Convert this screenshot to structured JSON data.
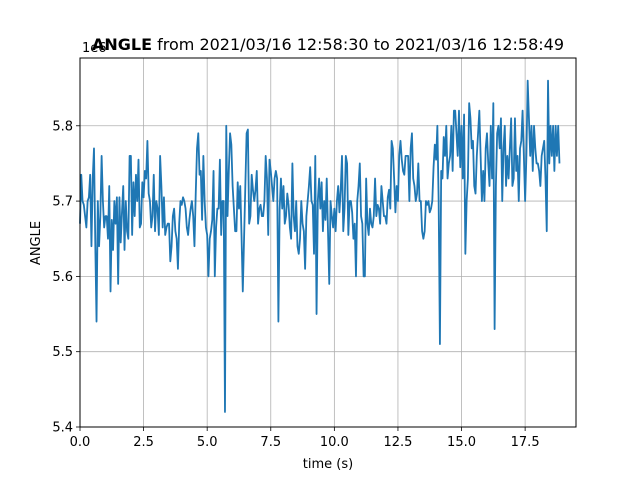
{
  "chart_data": {
    "type": "line",
    "title_bold": "ANGLE",
    "title_rest": " from 2021/03/16 12:58:30 to 2021/03/16 12:58:49",
    "xlabel": "time (s)",
    "ylabel": "ANGLE",
    "y_offset_label": "1e6",
    "xlim": [
      0,
      19.5
    ],
    "ylim": [
      5.4,
      5.89
    ],
    "xticks": [
      0.0,
      2.5,
      5.0,
      7.5,
      10.0,
      12.5,
      15.0,
      17.5
    ],
    "xtick_labels": [
      "0.0",
      "2.5",
      "5.0",
      "7.5",
      "10.0",
      "12.5",
      "15.0",
      "17.5"
    ],
    "yticks": [
      5.4,
      5.5,
      5.6,
      5.7,
      5.8
    ],
    "ytick_labels": [
      "5.4",
      "5.5",
      "5.6",
      "5.7",
      "5.8"
    ],
    "grid": true,
    "line_color": "#1f77b4",
    "x_start": 0.0,
    "x_step": 0.05,
    "series": [
      {
        "values": [
          5.67,
          5.735,
          5.7,
          5.695,
          5.68,
          5.665,
          5.7,
          5.705,
          5.735,
          5.64,
          5.73,
          5.77,
          5.645,
          5.54,
          5.7,
          5.64,
          5.68,
          5.76,
          5.7,
          5.665,
          5.68,
          5.68,
          5.65,
          5.72,
          5.58,
          5.675,
          5.635,
          5.7,
          5.67,
          5.705,
          5.59,
          5.705,
          5.645,
          5.685,
          5.72,
          5.635,
          5.7,
          5.66,
          5.65,
          5.76,
          5.76,
          5.655,
          5.725,
          5.68,
          5.735,
          5.7,
          5.755,
          5.665,
          5.67,
          5.725,
          5.705,
          5.74,
          5.73,
          5.78,
          5.71,
          5.7,
          5.665,
          5.68,
          5.735,
          5.66,
          5.7,
          5.69,
          5.655,
          5.76,
          5.72,
          5.665,
          5.705,
          5.655,
          5.665,
          5.67,
          5.67,
          5.62,
          5.64,
          5.68,
          5.69,
          5.66,
          5.65,
          5.61,
          5.67,
          5.7,
          5.695,
          5.705,
          5.7,
          5.69,
          5.665,
          5.655,
          5.675,
          5.69,
          5.7,
          5.68,
          5.64,
          5.71,
          5.77,
          5.79,
          5.735,
          5.74,
          5.675,
          5.76,
          5.7,
          5.665,
          5.655,
          5.6,
          5.65,
          5.66,
          5.675,
          5.74,
          5.6,
          5.665,
          5.69,
          5.69,
          5.755,
          5.655,
          5.7,
          5.7,
          5.42,
          5.8,
          5.68,
          5.74,
          5.79,
          5.775,
          5.72,
          5.69,
          5.66,
          5.66,
          5.725,
          5.69,
          5.72,
          5.655,
          5.58,
          5.65,
          5.72,
          5.79,
          5.795,
          5.67,
          5.68,
          5.735,
          5.715,
          5.7,
          5.715,
          5.74,
          5.67,
          5.69,
          5.695,
          5.68,
          5.68,
          5.7,
          5.76,
          5.73,
          5.655,
          5.755,
          5.74,
          5.72,
          5.7,
          5.73,
          5.74,
          5.73,
          5.54,
          5.69,
          5.73,
          5.69,
          5.72,
          5.67,
          5.68,
          5.71,
          5.695,
          5.665,
          5.65,
          5.75,
          5.68,
          5.66,
          5.7,
          5.64,
          5.63,
          5.65,
          5.7,
          5.67,
          5.66,
          5.61,
          5.68,
          5.7,
          5.72,
          5.745,
          5.7,
          5.695,
          5.63,
          5.76,
          5.55,
          5.7,
          5.73,
          5.69,
          5.725,
          5.66,
          5.7,
          5.675,
          5.73,
          5.66,
          5.59,
          5.7,
          5.68,
          5.665,
          5.69,
          5.66,
          5.7,
          5.72,
          5.685,
          5.715,
          5.76,
          5.66,
          5.69,
          5.76,
          5.75,
          5.655,
          5.7,
          5.7,
          5.685,
          5.65,
          5.67,
          5.6,
          5.7,
          5.72,
          5.75,
          5.68,
          5.67,
          5.6,
          5.6,
          5.73,
          5.67,
          5.655,
          5.69,
          5.67,
          5.665,
          5.68,
          5.73,
          5.68,
          5.695,
          5.69,
          5.67,
          5.72,
          5.7,
          5.68,
          5.68,
          5.67,
          5.705,
          5.715,
          5.69,
          5.78,
          5.77,
          5.73,
          5.685,
          5.72,
          5.7,
          5.76,
          5.78,
          5.755,
          5.74,
          5.735,
          5.76,
          5.76,
          5.76,
          5.7,
          5.77,
          5.79,
          5.73,
          5.72,
          5.7,
          5.71,
          5.75,
          5.7,
          5.7,
          5.66,
          5.65,
          5.66,
          5.7,
          5.695,
          5.7,
          5.685,
          5.69,
          5.7,
          5.745,
          5.775,
          5.755,
          5.8,
          5.7,
          5.51,
          5.74,
          5.73,
          5.785,
          5.76,
          5.8,
          5.73,
          5.75,
          5.76,
          5.8,
          5.74,
          5.82,
          5.82,
          5.79,
          5.76,
          5.82,
          5.745,
          5.8,
          5.73,
          5.815,
          5.63,
          5.7,
          5.73,
          5.83,
          5.81,
          5.77,
          5.78,
          5.72,
          5.71,
          5.76,
          5.79,
          5.82,
          5.76,
          5.7,
          5.74,
          5.7,
          5.77,
          5.79,
          5.75,
          5.72,
          5.8,
          5.73,
          5.83,
          5.53,
          5.72,
          5.79,
          5.8,
          5.77,
          5.81,
          5.7,
          5.77,
          5.8,
          5.72,
          5.76,
          5.73,
          5.77,
          5.81,
          5.72,
          5.73,
          5.81,
          5.74,
          5.76,
          5.7,
          5.77,
          5.78,
          5.82,
          5.76,
          5.7,
          5.76,
          5.86,
          5.81,
          5.76,
          5.8,
          5.74,
          5.8,
          5.77,
          5.75,
          5.75,
          5.74,
          5.72,
          5.76,
          5.77,
          5.78,
          5.73,
          5.66,
          5.86,
          5.75,
          5.8,
          5.76,
          5.8,
          5.74,
          5.8,
          5.76,
          5.8,
          5.75
        ]
      }
    ]
  }
}
